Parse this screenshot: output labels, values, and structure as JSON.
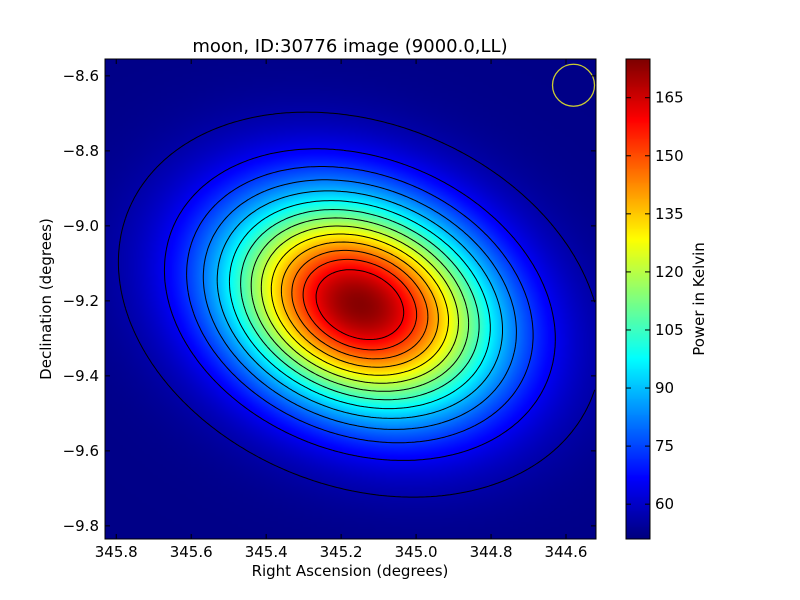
{
  "chart_data": {
    "type": "heatmap",
    "title": "moon, ID:30776 image (9000.0,LL)",
    "xlabel": "Right Ascension (degrees)",
    "ylabel": "Declination (degrees)",
    "colorbar_label": "Power in Kelvin",
    "colormap": "jet",
    "xlim": [
      345.83,
      344.52
    ],
    "ylim": [
      -9.835,
      -8.555
    ],
    "x_ticks": [
      345.8,
      345.6,
      345.4,
      345.2,
      345.0,
      344.8,
      344.6
    ],
    "x_tick_labels": [
      "345.8",
      "345.6",
      "345.4",
      "345.2",
      "345.0",
      "344.8",
      "344.6"
    ],
    "y_ticks": [
      -8.6,
      -8.8,
      -9.0,
      -9.2,
      -9.4,
      -9.6,
      -9.8
    ],
    "y_tick_labels": [
      "−8.6",
      "−8.8",
      "−9.0",
      "−9.2",
      "−9.4",
      "−9.6",
      "−9.8"
    ],
    "colorbar_range": [
      51,
      175
    ],
    "colorbar_ticks": [
      60,
      75,
      90,
      105,
      120,
      135,
      150,
      165
    ],
    "colorbar_tick_labels": [
      "60",
      "75",
      "90",
      "105",
      "120",
      "135",
      "150",
      "165"
    ],
    "background_level": 52,
    "source": {
      "peak_ra": 345.15,
      "peak_dec": -9.21,
      "peak_value": 174,
      "sigma_ra_deg": 0.255,
      "sigma_dec_deg": 0.185,
      "rotation_deg": -22
    },
    "contour_levels": [
      56,
      65,
      73,
      81,
      89,
      97,
      105,
      113,
      121,
      129,
      137,
      145,
      153,
      161
    ],
    "grid": false,
    "beam_marker": {
      "ra": 344.58,
      "dec": -8.625,
      "color": "#cccc33"
    }
  }
}
